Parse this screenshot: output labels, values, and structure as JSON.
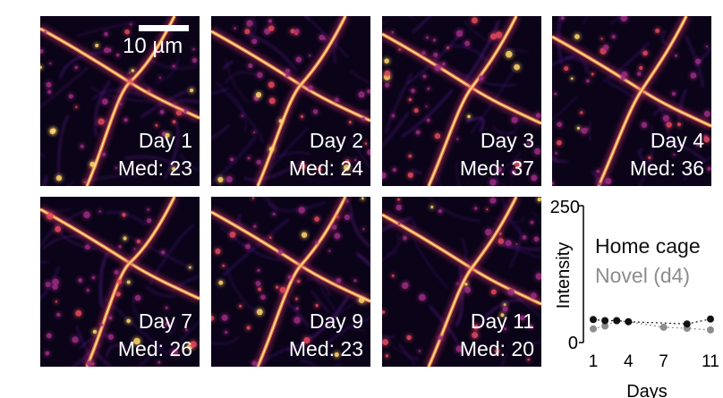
{
  "scale_bar": {
    "label": "10 µm"
  },
  "panels": [
    {
      "day": "Day 1",
      "median": "Med: 23"
    },
    {
      "day": "Day 2",
      "median": "Med: 24"
    },
    {
      "day": "Day 3",
      "median": "Med: 37"
    },
    {
      "day": "Day 4",
      "median": "Med: 36"
    },
    {
      "day": "Day 7",
      "median": "Med: 26"
    },
    {
      "day": "Day 9",
      "median": "Med: 23"
    },
    {
      "day": "Day 11",
      "median": "Med: 20"
    }
  ],
  "colors": {
    "home": "#111111",
    "novel": "#8c8c8c"
  },
  "chart_data": {
    "type": "line",
    "xlabel": "Days",
    "ylabel": "Intensity",
    "xticks": [
      "1",
      "4",
      "7",
      "11"
    ],
    "yticks": [
      "250",
      "0"
    ],
    "xlim": [
      0.5,
      11.5
    ],
    "ylim": [
      0,
      250
    ],
    "series": [
      {
        "name": "Home cage",
        "x": [
          1,
          2,
          3,
          4,
          9,
          11
        ],
        "y": [
          42,
          40,
          40,
          38,
          34,
          43
        ]
      },
      {
        "name": "Novel (d4)",
        "x": [
          1,
          2,
          3,
          4,
          7,
          9,
          11
        ],
        "y": [
          25,
          30,
          40,
          38,
          28,
          26,
          23
        ]
      }
    ]
  }
}
